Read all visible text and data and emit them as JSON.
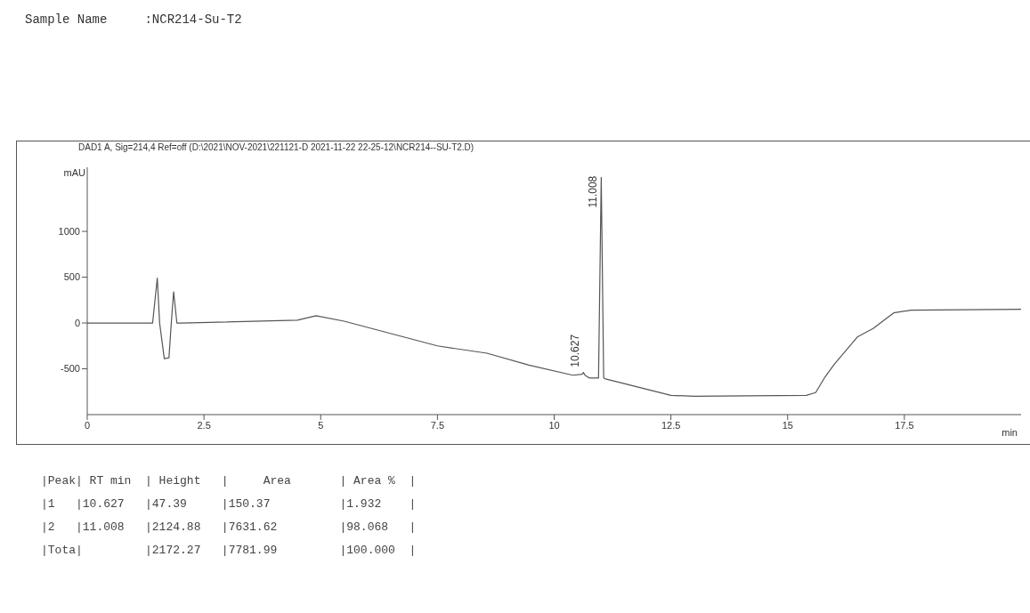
{
  "chart_data": {
    "type": "line",
    "title": "Sample Name     :NCR214-Su-T2",
    "subtitle": "DAD1 A, Sig=214,4 Ref=off (D:\\2021\\NOV-2021\\221121-D 2021-11-22 22-25-12\\NCR214--SU-T2.D)",
    "xlabel": "min",
    "ylabel": "mAU",
    "x": [
      0,
      1.4,
      1.5,
      1.55,
      1.65,
      1.75,
      1.8,
      1.85,
      1.92,
      2.0,
      4.5,
      4.9,
      5.5,
      7.5,
      8.56,
      9.46,
      10.4,
      10.6,
      10.627,
      10.66,
      10.75,
      10.95,
      11.008,
      11.06,
      11.1,
      12.5,
      13,
      15.4,
      15.6,
      15.8,
      16.0,
      16.5,
      16.83,
      17.27,
      17.64,
      20
    ],
    "series": [
      {
        "color": "#555555",
        "values": [
          0,
          0,
          490,
          0,
          -390,
          -380,
          0,
          340,
          0,
          0,
          30,
          80,
          20,
          -250,
          -330,
          -460,
          -570,
          -560,
          -540,
          -570,
          -600,
          -600,
          1590,
          -600,
          -610,
          -790,
          -800,
          -790,
          -760,
          -590,
          -450,
          -150,
          -60,
          110,
          140,
          150
        ]
      }
    ],
    "xlim": [
      0,
      20
    ],
    "xticks": [
      0,
      2.5,
      5,
      7.5,
      10,
      12.5,
      15,
      17.5
    ],
    "ylim": [
      -1000,
      1700
    ],
    "yticks": [
      -500,
      0,
      500,
      1000
    ],
    "marker": "none",
    "line_style": "solid",
    "annotations": [
      {
        "text": "11.008",
        "x": 11.008,
        "y": 1586
      },
      {
        "text": "10.627",
        "x": 10.627,
        "y": -540
      },
      "|Peak| RT min  | Height   |     Area       | Area %  |",
      "|1   |10.627   |47.39     |150.37          |1.932    |",
      "|2   |11.008   |2124.88   |7631.62         |98.068   |",
      "|Tota|         |2172.27   |7781.99         |100.000  |"
    ]
  }
}
